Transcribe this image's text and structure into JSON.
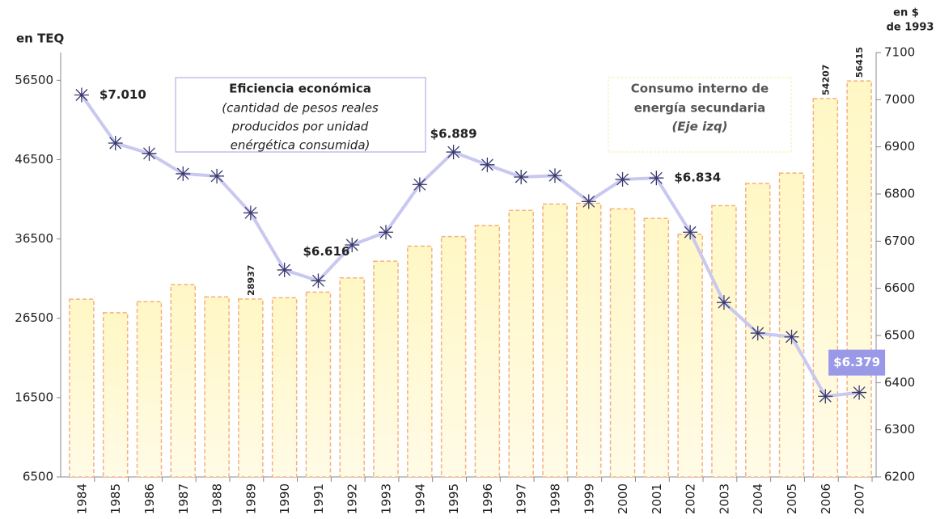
{
  "chart_data": {
    "type": "bar-line",
    "y_label": "en TEQ",
    "y2_label": [
      "en $",
      "de 1993"
    ],
    "annotations": [
      {
        "title": "Eficiencia económica",
        "lines": [
          "(cantidad de pesos reales",
          "producidos por unidad",
          "enérgética consumida)"
        ]
      },
      {
        "lines": [
          "Consumo interno de",
          "energía secundaria"
        ],
        "note": "(Eje izq)"
      }
    ],
    "categories": [
      "1984",
      "1985",
      "1986",
      "1987",
      "1988",
      "1989",
      "1990",
      "1991",
      "1992",
      "1993",
      "1994",
      "1995",
      "1996",
      "1997",
      "1998",
      "1999",
      "2000",
      "2001",
      "2002",
      "2003",
      "2004",
      "2005",
      "2006",
      "2007"
    ],
    "series": [
      {
        "name": "Consumo interno de energía secundaria",
        "color": "#f4b183",
        "axis": "y",
        "values": [
          28900,
          27200,
          28600,
          30750,
          29200,
          28937,
          29100,
          29800,
          31600,
          33700,
          35600,
          36800,
          38200,
          40100,
          40900,
          41000,
          40300,
          39100,
          37100,
          40700,
          43500,
          44800,
          54207,
          56415
        ],
        "value_labels": [
          null,
          null,
          null,
          null,
          null,
          "28937",
          null,
          null,
          null,
          null,
          null,
          null,
          null,
          null,
          null,
          null,
          null,
          null,
          null,
          null,
          null,
          null,
          "54207",
          "56415"
        ]
      },
      {
        "name": "Eficiencia económica",
        "color": "#c8c8f0",
        "axis": "y2",
        "values": [
          7010,
          6908,
          6886,
          6843,
          6838,
          6760,
          6639,
          6616,
          6692,
          6719,
          6820,
          6889,
          6862,
          6836,
          6839,
          6784,
          6831,
          6834,
          6719,
          6570,
          6505,
          6497,
          6371,
          6379
        ],
        "value_labels": [
          "$7.010",
          null,
          null,
          null,
          null,
          null,
          null,
          "$6.616",
          null,
          null,
          null,
          "$6.889",
          null,
          null,
          null,
          null,
          null,
          "$6.834",
          null,
          null,
          null,
          null,
          null,
          "$6.379"
        ]
      }
    ],
    "ylim": [
      6500,
      60000
    ],
    "yticks": [
      6500,
      16500,
      26500,
      36500,
      46500,
      56500
    ],
    "y2lim": [
      6200,
      7100
    ],
    "y2ticks": [
      6200,
      6300,
      6400,
      6500,
      6600,
      6700,
      6800,
      6900,
      7000,
      7100
    ]
  }
}
